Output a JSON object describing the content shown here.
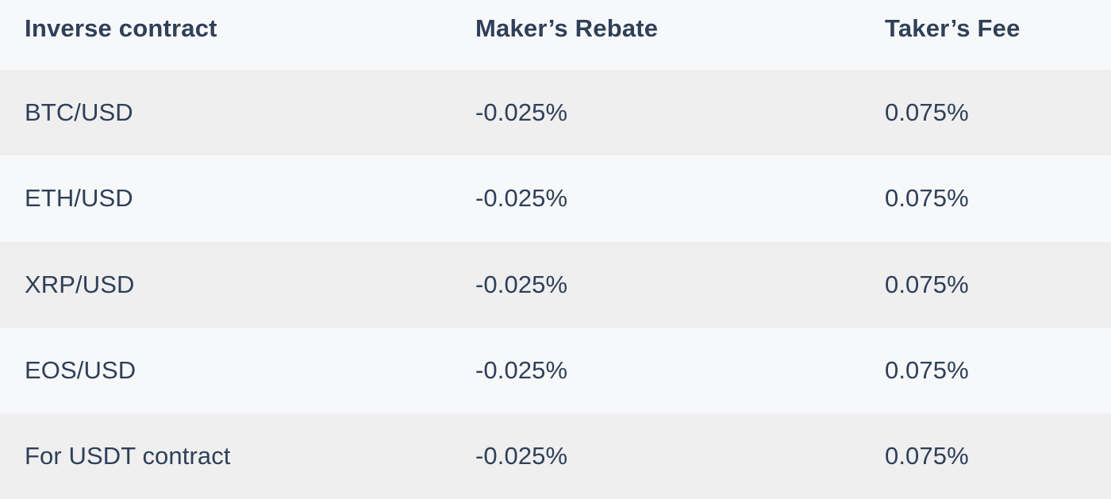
{
  "table": {
    "headers": [
      "Inverse contract",
      "Maker’s Rebate",
      "Taker’s Fee"
    ],
    "rows": [
      [
        "BTC/USD",
        "-0.025%",
        "0.075%"
      ],
      [
        "ETH/USD",
        "-0.025%",
        "0.075%"
      ],
      [
        "XRP/USD",
        "-0.025%",
        "0.075%"
      ],
      [
        "EOS/USD",
        "-0.025%",
        "0.075%"
      ],
      [
        "For USDT contract",
        "-0.025%",
        "0.075%"
      ]
    ]
  },
  "colors": {
    "text": "#2f4058",
    "row_shaded": "#efeff0",
    "row_light": "#f7f8fa"
  }
}
